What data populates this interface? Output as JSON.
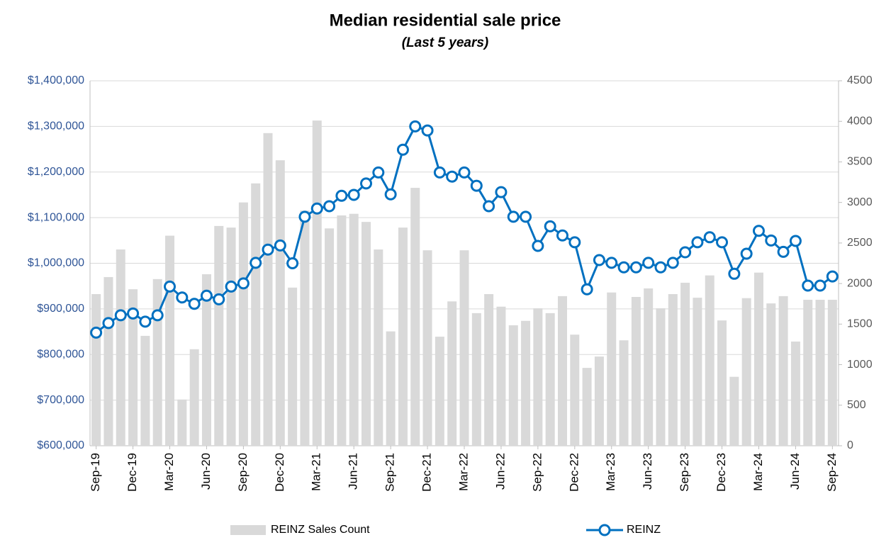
{
  "chart_data": {
    "type": "bar-line",
    "title": "Median residential sale price",
    "subtitle": "(Last 5 years)",
    "categories": [
      "Sep-19",
      null,
      null,
      "Dec-19",
      null,
      null,
      "Mar-20",
      null,
      null,
      "Jun-20",
      null,
      null,
      "Sep-20",
      null,
      null,
      "Dec-20",
      null,
      null,
      "Mar-21",
      null,
      null,
      "Jun-21",
      null,
      null,
      "Sep-21",
      null,
      null,
      "Dec-21",
      null,
      null,
      "Mar-22",
      null,
      null,
      "Jun-22",
      null,
      null,
      "Sep-22",
      null,
      null,
      "Dec-22",
      null,
      null,
      "Mar-23",
      null,
      null,
      "Jun-23",
      null,
      null,
      "Sep-23",
      null,
      null,
      "Dec-23",
      null,
      null,
      "Mar-24",
      null,
      null,
      "Jun-24",
      null,
      null,
      "Sep-24"
    ],
    "series": [
      {
        "name": "REINZ Sales Count",
        "type": "bar",
        "axis": "y2",
        "color": "#d9d9d9",
        "values": [
          1870,
          2080,
          2420,
          1930,
          1355,
          2055,
          2590,
          570,
          1190,
          2115,
          2710,
          2690,
          3000,
          3235,
          3855,
          3520,
          1950,
          2900,
          4010,
          2680,
          2840,
          2860,
          2760,
          2420,
          1410,
          2690,
          3180,
          2410,
          1345,
          1780,
          2410,
          1635,
          1870,
          1715,
          1485,
          1540,
          1695,
          1635,
          1845,
          1370,
          960,
          1100,
          1890,
          1300,
          1835,
          1940,
          1695,
          1870,
          2010,
          1825,
          2100,
          1545,
          850,
          1820,
          2135,
          1755,
          1845,
          1285,
          1800,
          1800,
          1800
        ]
      },
      {
        "name": "REINZ",
        "type": "line",
        "axis": "y",
        "color": "#0070c0",
        "values": [
          848000,
          869000,
          886000,
          890000,
          872000,
          886000,
          949000,
          925000,
          911000,
          929000,
          921000,
          949000,
          956000,
          1001000,
          1030000,
          1039000,
          1000000,
          1102000,
          1120000,
          1125000,
          1148000,
          1150000,
          1175000,
          1199000,
          1151000,
          1249000,
          1300000,
          1291000,
          1199000,
          1190000,
          1199000,
          1170000,
          1125000,
          1156000,
          1102000,
          1102000,
          1038000,
          1081000,
          1061000,
          1046000,
          943000,
          1007000,
          1001000,
          991000,
          991000,
          1001000,
          991000,
          1001000,
          1024000,
          1046000,
          1057000,
          1046000,
          977000,
          1021000,
          1071000,
          1050000,
          1025000,
          1049000,
          951000,
          951000,
          971000
        ]
      }
    ],
    "ylim": [
      600000,
      1400000
    ],
    "yticks": [
      {
        "value": 600000,
        "label": "$600,000"
      },
      {
        "value": 700000,
        "label": "$700,000"
      },
      {
        "value": 800000,
        "label": "$800,000"
      },
      {
        "value": 900000,
        "label": "$900,000"
      },
      {
        "value": 1000000,
        "label": "$1,000,000"
      },
      {
        "value": 1100000,
        "label": "$1,100,000"
      },
      {
        "value": 1200000,
        "label": "$1,200,000"
      },
      {
        "value": 1300000,
        "label": "$1,300,000"
      },
      {
        "value": 1400000,
        "label": "$1,400,000"
      }
    ],
    "y2lim": [
      0,
      4500
    ],
    "y2ticks": [
      0,
      500,
      1000,
      1500,
      2000,
      2500,
      3000,
      3500,
      4000,
      4500
    ],
    "grid": true,
    "legend": "bottom"
  }
}
